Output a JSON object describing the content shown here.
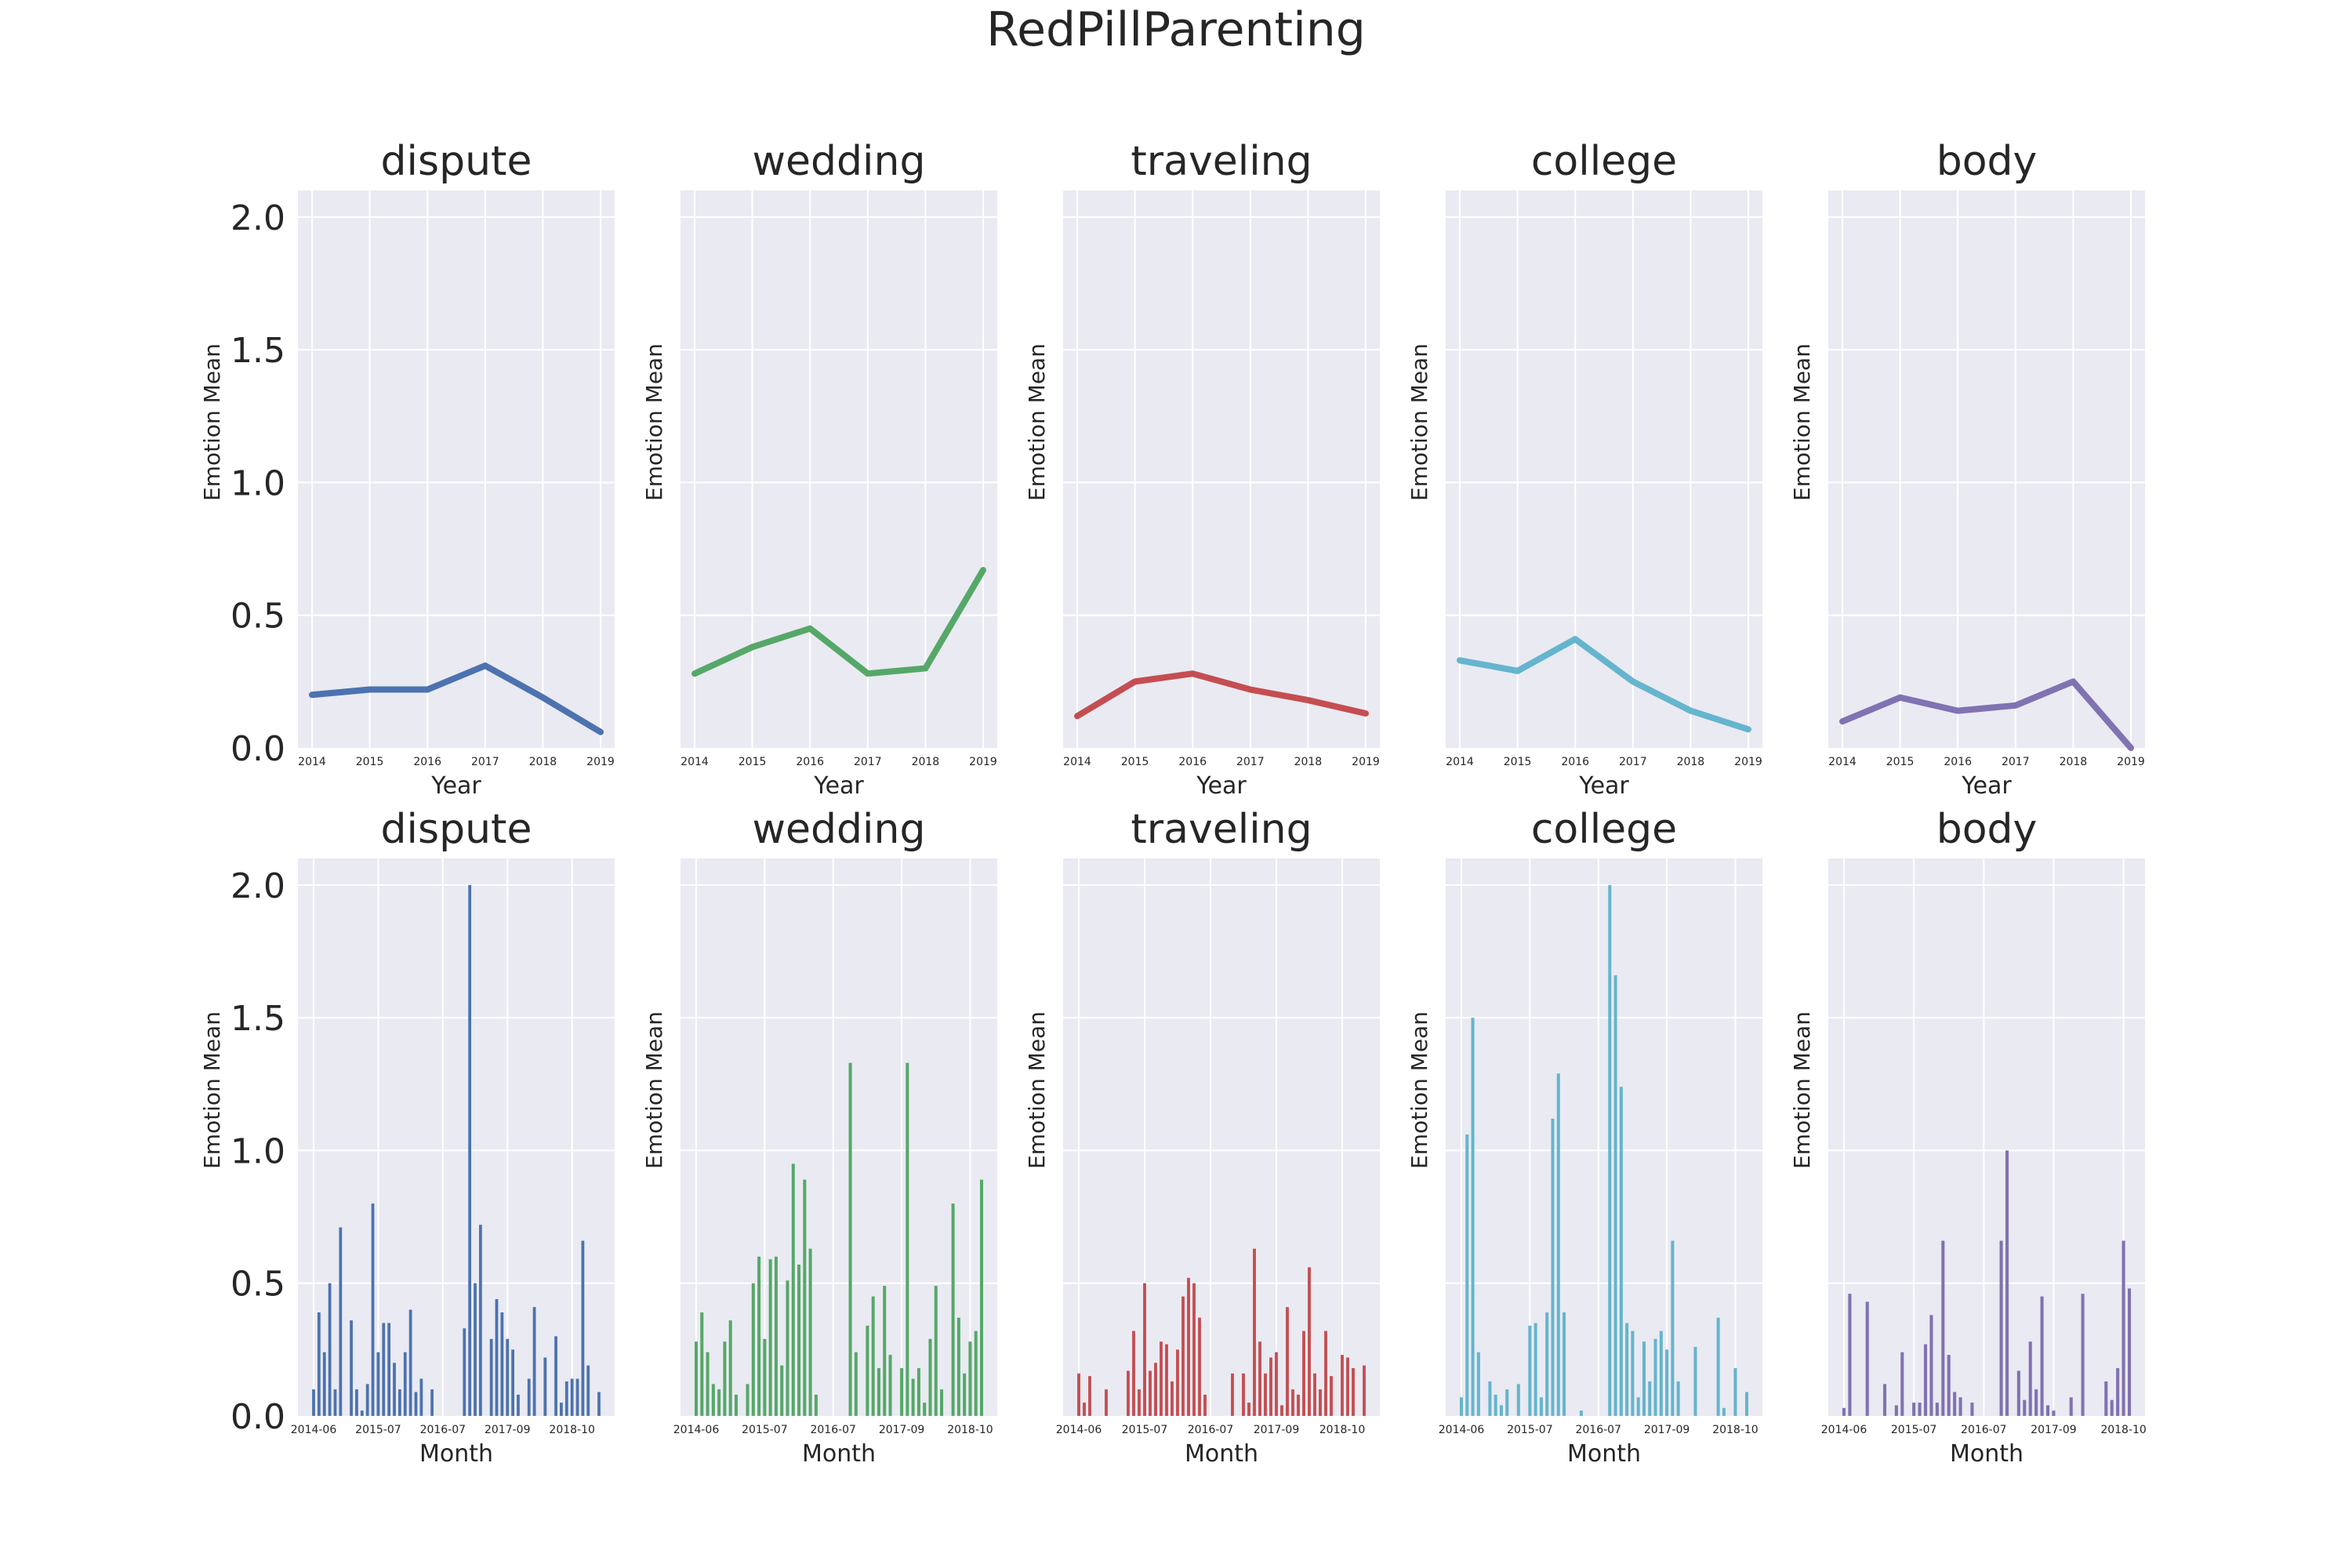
{
  "figure_title": "RedPillParenting",
  "colors": {
    "dispute": "#4C72B0",
    "wedding": "#55A868",
    "traveling": "#C44E52",
    "college": "#64B5CD",
    "body": "#8172B2",
    "panel_bg": "#EAEAF2",
    "grid": "#FFFFFF",
    "text": "#262626"
  },
  "chart_data": [
    {
      "type": "line",
      "title": "dispute",
      "xlabel": "Year",
      "ylabel": "Emotion Mean",
      "ylim": [
        0,
        2.1
      ],
      "yticks": [
        "0.0",
        "0.5",
        "1.0",
        "1.5",
        "2.0"
      ],
      "categories": [
        "2014",
        "2015",
        "2016",
        "2017",
        "2018",
        "2019"
      ],
      "values": [
        0.2,
        0.22,
        0.22,
        0.31,
        0.19,
        0.06
      ],
      "color": "#4C72B0",
      "grid": true
    },
    {
      "type": "line",
      "title": "wedding",
      "xlabel": "Year",
      "ylabel": "Emotion Mean",
      "ylim": [
        0,
        2.1
      ],
      "categories": [
        "2014",
        "2015",
        "2016",
        "2017",
        "2018",
        "2019"
      ],
      "values": [
        0.28,
        0.38,
        0.45,
        0.28,
        0.3,
        0.67
      ],
      "color": "#55A868",
      "grid": true
    },
    {
      "type": "line",
      "title": "traveling",
      "xlabel": "Year",
      "ylabel": "Emotion Mean",
      "ylim": [
        0,
        2.1
      ],
      "categories": [
        "2014",
        "2015",
        "2016",
        "2017",
        "2018",
        "2019"
      ],
      "values": [
        0.12,
        0.25,
        0.28,
        0.22,
        0.18,
        0.13
      ],
      "color": "#C44E52",
      "grid": true
    },
    {
      "type": "line",
      "title": "college",
      "xlabel": "Year",
      "ylabel": "Emotion Mean",
      "ylim": [
        0,
        2.1
      ],
      "categories": [
        "2014",
        "2015",
        "2016",
        "2017",
        "2018",
        "2019"
      ],
      "values": [
        0.33,
        0.29,
        0.41,
        0.25,
        0.14,
        0.07
      ],
      "color": "#64B5CD",
      "grid": true
    },
    {
      "type": "line",
      "title": "body",
      "xlabel": "Year",
      "ylabel": "Emotion Mean",
      "ylim": [
        0,
        2.1
      ],
      "categories": [
        "2014",
        "2015",
        "2016",
        "2017",
        "2018",
        "2019"
      ],
      "values": [
        0.1,
        0.19,
        0.14,
        0.16,
        0.25,
        0.0
      ],
      "color": "#8172B2",
      "grid": true
    },
    {
      "type": "bar",
      "title": "dispute",
      "xlabel": "Month",
      "ylabel": "Emotion Mean",
      "ylim": [
        0,
        2.1
      ],
      "yticks": [
        "0.0",
        "0.5",
        "1.0",
        "1.5",
        "2.0"
      ],
      "xticks": [
        "2014-06",
        "2015-07",
        "2016-07",
        "2017-09",
        "2018-10"
      ],
      "values": [
        0.1,
        0.39,
        0.24,
        0.5,
        0.1,
        0.71,
        0,
        0.36,
        0.1,
        0.02,
        0.12,
        0.8,
        0.24,
        0.35,
        0.35,
        0.2,
        0.1,
        0.24,
        0.4,
        0.09,
        0.14,
        0,
        0.1,
        0,
        0,
        0,
        0,
        0,
        0.33,
        2.0,
        0.5,
        0.72,
        0,
        0.29,
        0.44,
        0.39,
        0.29,
        0.25,
        0.08,
        0,
        0.14,
        0.41,
        0,
        0.22,
        0,
        0.3,
        0.05,
        0.13,
        0.14,
        0.14,
        0.66,
        0.19,
        0,
        0.09
      ],
      "color": "#4C72B0",
      "grid": true
    },
    {
      "type": "bar",
      "title": "wedding",
      "xlabel": "Month",
      "ylabel": "Emotion Mean",
      "ylim": [
        0,
        2.1
      ],
      "xticks": [
        "2014-06",
        "2015-07",
        "2016-07",
        "2017-09",
        "2018-10"
      ],
      "values": [
        0.28,
        0.39,
        0.24,
        0.12,
        0.1,
        0.28,
        0.36,
        0.08,
        0,
        0.12,
        0.5,
        0.6,
        0.29,
        0.59,
        0.6,
        0.19,
        0.51,
        0.95,
        0.57,
        0.89,
        0.63,
        0.08,
        0,
        0,
        0,
        0,
        0,
        1.33,
        0.24,
        0,
        0.34,
        0.45,
        0.18,
        0.49,
        0.23,
        0,
        0.18,
        1.33,
        0.14,
        0.18,
        0.05,
        0.29,
        0.49,
        0.1,
        0,
        0.8,
        0.37,
        0.16,
        0.28,
        0.32,
        0.89
      ],
      "color": "#55A868",
      "grid": true
    },
    {
      "type": "bar",
      "title": "traveling",
      "xlabel": "Month",
      "ylabel": "Emotion Mean",
      "ylim": [
        0,
        2.1
      ],
      "xticks": [
        "2014-06",
        "2015-07",
        "2016-07",
        "2017-09",
        "2018-10"
      ],
      "values": [
        0.16,
        0.05,
        0.15,
        0,
        0,
        0.1,
        0,
        0,
        0,
        0.17,
        0.32,
        0.1,
        0.5,
        0.17,
        0.2,
        0.28,
        0.27,
        0.13,
        0.25,
        0.45,
        0.52,
        0.5,
        0.37,
        0.08,
        0,
        0,
        0,
        0,
        0.16,
        0,
        0.16,
        0.05,
        0.63,
        0.28,
        0.16,
        0.22,
        0.24,
        0.04,
        0.41,
        0.1,
        0.08,
        0.32,
        0.56,
        0.16,
        0.1,
        0.32,
        0.15,
        0,
        0.23,
        0.22,
        0.18,
        0,
        0.19
      ],
      "color": "#C44E52",
      "grid": true
    },
    {
      "type": "bar",
      "title": "college",
      "xlabel": "Month",
      "ylabel": "Emotion Mean",
      "ylim": [
        0,
        2.1
      ],
      "xticks": [
        "2014-06",
        "2015-07",
        "2016-07",
        "2017-09",
        "2018-10"
      ],
      "values": [
        0.07,
        1.06,
        1.5,
        0.24,
        0,
        0.13,
        0.08,
        0.04,
        0.1,
        0,
        0.12,
        0,
        0.34,
        0.35,
        0.07,
        0.39,
        1.12,
        1.29,
        0.39,
        0,
        0,
        0.02,
        0,
        0,
        0,
        0,
        2.0,
        1.66,
        1.24,
        0.35,
        0.32,
        0.07,
        0.28,
        0.13,
        0.29,
        0.32,
        0.25,
        0.66,
        0.13,
        0,
        0,
        0.26,
        0,
        0,
        0,
        0.37,
        0.03,
        0,
        0.18,
        0,
        0.09
      ],
      "color": "#64B5CD",
      "grid": true
    },
    {
      "type": "bar",
      "title": "body",
      "xlabel": "Month",
      "ylabel": "Emotion Mean",
      "ylim": [
        0,
        2.1
      ],
      "xticks": [
        "2014-06",
        "2015-07",
        "2016-07",
        "2017-09",
        "2018-10"
      ],
      "values": [
        0.03,
        0.46,
        0,
        0,
        0.43,
        0,
        0,
        0.12,
        0,
        0.04,
        0.24,
        0,
        0.05,
        0.05,
        0.27,
        0.38,
        0.05,
        0.66,
        0.23,
        0.09,
        0.07,
        0,
        0.05,
        0,
        0,
        0,
        0,
        0.66,
        1.0,
        0,
        0.17,
        0.06,
        0.28,
        0.1,
        0.45,
        0.04,
        0.02,
        0,
        0,
        0.07,
        0,
        0.46,
        0,
        0,
        0,
        0.13,
        0.06,
        0.18,
        0.66,
        0.48
      ],
      "color": "#8172B2",
      "grid": true
    }
  ]
}
